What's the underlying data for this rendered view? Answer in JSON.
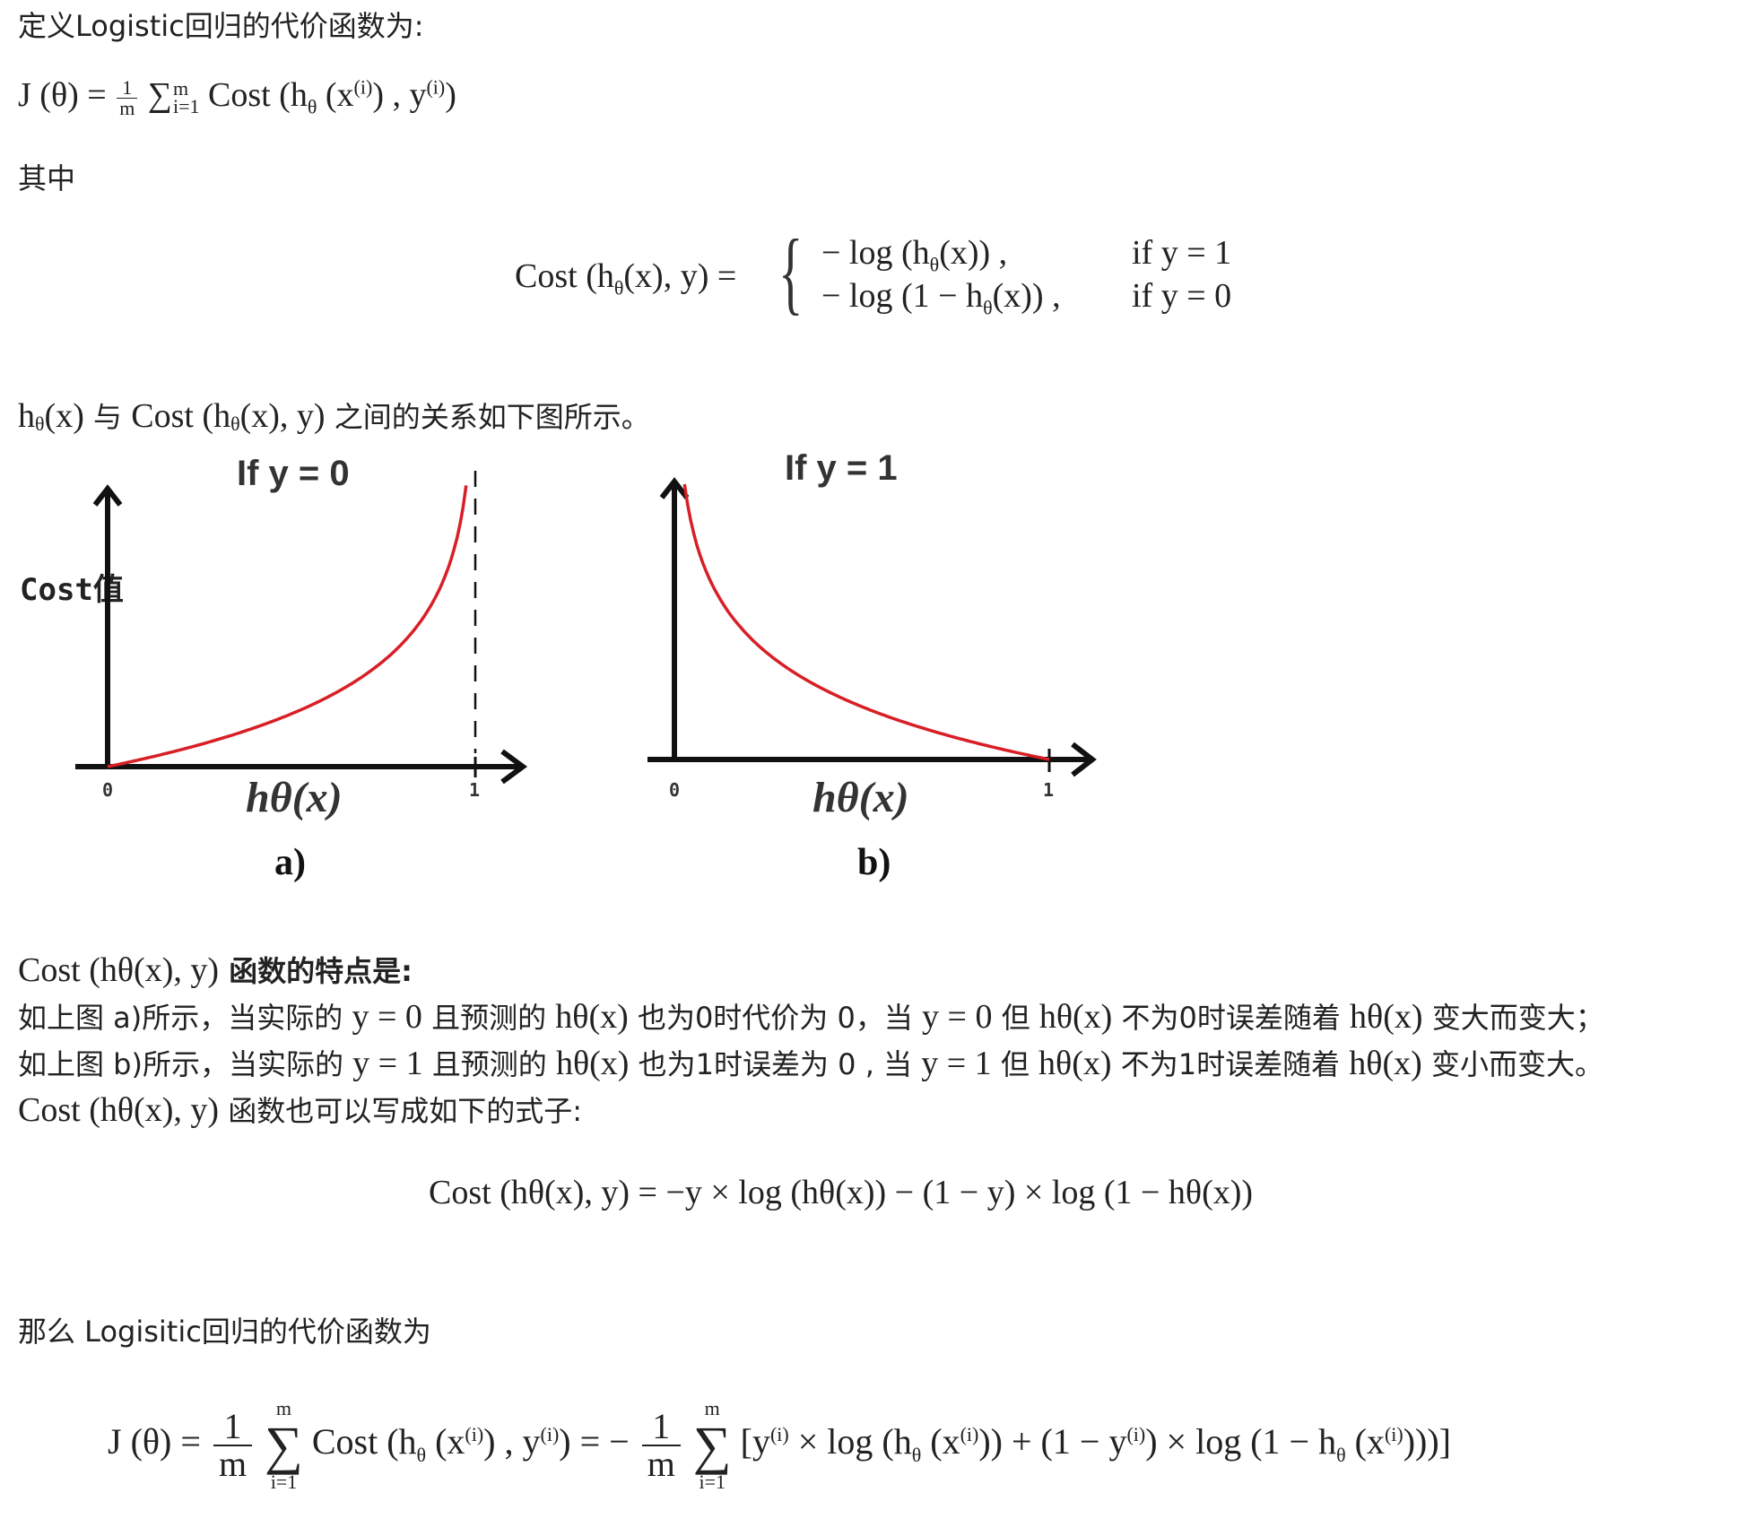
{
  "intro": {
    "define_text": "定义Logistic回归的代价函数为:",
    "formula_j": {
      "lhs": "J (θ) =",
      "frac_num": "1",
      "frac_den": "m",
      "sigma": "∑",
      "sum_upper": "m",
      "sum_lower": "i=1",
      "cost": "Cost (h",
      "theta_sub": "θ",
      "x_open": " (x",
      "sup_i": "(i)",
      "x_close": ") , y",
      "sup_i2": "(i)",
      "end": ")"
    },
    "where_text": "其中"
  },
  "piecewise": {
    "lhs": "Cost (h",
    "lhs_sub": "θ",
    "lhs_rest": "(x), y) =",
    "brace": "{",
    "case1_expr": "− log (h",
    "case1_sub": "θ",
    "case1_rest": "(x)) ,",
    "case1_cond": "if y = 1",
    "case2_expr": "− log (1 − h",
    "case2_sub": "θ",
    "case2_rest": "(x)) ,",
    "case2_cond": "if y = 0"
  },
  "relation": {
    "h_pre": "h",
    "h_sub": "θ",
    "h_rest": "(x)",
    "with": " 与 ",
    "cost_pre": "Cost (h",
    "cost_sub": "θ",
    "cost_rest": "(x), y)",
    "tail": " 之间的关系如下图所示。"
  },
  "plots": {
    "cost_label": "Cost值",
    "left": {
      "title": "If y = 0",
      "tick0": "0",
      "tick1": "1",
      "xlabel": "hθ(x)",
      "caption": "a)"
    },
    "right": {
      "title": "If y = 1",
      "tick0": "0",
      "tick1": "1",
      "xlabel": "hθ(x)",
      "caption": "b)"
    },
    "curve_color": "#d81f26",
    "axis_color": "#111111"
  },
  "features": {
    "heading_math": "Cost (hθ(x), y)",
    "heading_text": " 函数的特点是:",
    "line_a": {
      "p1": "如上图 a)所示，当实际的 ",
      "m1": "y = 0",
      "p2": " 且预测的 ",
      "m2": "hθ(x)",
      "p3": " 也为0时代价为 0，当 ",
      "m3": "y = 0",
      "p4": " 但 ",
      "m4": "hθ(x)",
      "p5": " 不为0时误差随着 ",
      "m5": "hθ(x)",
      "p6": " 变大而变大；"
    },
    "line_b": {
      "p1": "如上图 b)所示，当实际的 ",
      "m1": "y = 1",
      "p2": " 且预测的 ",
      "m2": "hθ(x)",
      "p3": " 也为1时误差为 0 , 当 ",
      "m3": "y = 1",
      "p4": " 但 ",
      "m4": "hθ(x)",
      "p5": " 不为1时误差随着 ",
      "m5": "hθ(x)",
      "p6": " 变小而变大。"
    },
    "rewrite_math": "Cost (hθ(x), y)",
    "rewrite_text": " 函数也可以写成如下的式子:"
  },
  "combined": {
    "formula": "Cost (hθ(x), y) = −y × log (hθ(x)) − (1 − y) × log (1 − hθ(x))"
  },
  "final": {
    "text": "那么 Logisitic回归的代价函数为",
    "j": "J (θ) =",
    "one": "1",
    "m": "m",
    "sigma": "∑",
    "upper": "m",
    "lower": "i=1",
    "cost_part": "Cost (h",
    "theta": "θ",
    "x_part": " (x",
    "sup": "(i)",
    "y_part": ") , y",
    "sup2": "(i)",
    "close": ")",
    "eq_neg": "= −",
    "bracket_open": "[y",
    "sup3": "(i)",
    "times_log": " × log (h",
    "theta2": "θ",
    "x_part2": " (x",
    "sup4": "(i)",
    "plus": "))  + (1 − y",
    "sup5": "(i)",
    "times_log2": ") × log (1 − h",
    "theta3": "θ",
    "x_part3": " (x",
    "sup6": "(i)",
    "bracket_close": ")))]"
  }
}
